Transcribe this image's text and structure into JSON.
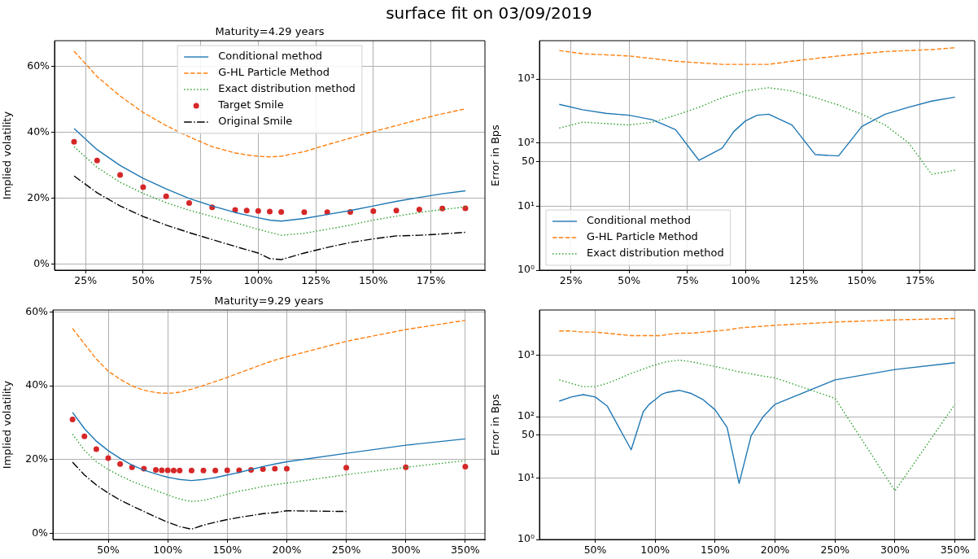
{
  "chart_data": [
    {
      "type": "line",
      "title": "surface fit on 03/09/2019",
      "subtitle": "Maturity=4.29 years",
      "ylabel": "Implied volatility",
      "grid": true,
      "legend": "top",
      "marker": "none",
      "x": [
        20,
        30,
        40,
        50,
        60,
        70,
        80,
        90,
        95,
        100,
        105,
        110,
        120,
        130,
        140,
        150,
        160,
        170,
        180,
        190
      ],
      "xlim": [
        11.5,
        198.5
      ],
      "xticks": [
        {
          "value": 25,
          "label": "25%"
        },
        {
          "value": 50,
          "label": "50%"
        },
        {
          "value": 75,
          "label": "75%"
        },
        {
          "value": 100,
          "label": "100%"
        },
        {
          "value": 125,
          "label": "125%"
        },
        {
          "value": 150,
          "label": "150%"
        },
        {
          "value": 175,
          "label": "175%"
        }
      ],
      "ylim": [
        -1.8,
        67.9
      ],
      "yticks": [
        {
          "value": 0,
          "label": "0%"
        },
        {
          "value": 20,
          "label": "20%"
        },
        {
          "value": 40,
          "label": "40%"
        },
        {
          "value": 60,
          "label": "60%"
        }
      ],
      "series": [
        {
          "name": "Conditional method",
          "color": "#1f77b4",
          "line_style": "solid",
          "values": [
            41.2,
            34.8,
            30.0,
            26.1,
            22.9,
            20.0,
            17.7,
            15.7,
            14.9,
            14.1,
            13.4,
            13.1,
            13.9,
            15.1,
            16.3,
            17.7,
            19.1,
            20.3,
            21.4,
            22.3
          ]
        },
        {
          "name": "G-HL Particle Method",
          "color": "#ff7f0e",
          "line_style": "dashed",
          "values": [
            64.7,
            57.0,
            51.1,
            46.1,
            42.1,
            38.7,
            35.7,
            33.8,
            33.2,
            32.8,
            32.6,
            32.8,
            34.2,
            36.3,
            38.3,
            40.3,
            42.1,
            44.0,
            45.7,
            47.2
          ]
        },
        {
          "name": "Exact distribution method",
          "color": "#2ca02c",
          "line_style": "dotted",
          "values": [
            35.7,
            29.4,
            24.9,
            21.5,
            18.7,
            16.4,
            14.5,
            12.6,
            11.6,
            10.6,
            9.7,
            8.8,
            9.4,
            10.6,
            11.9,
            13.4,
            14.6,
            15.7,
            16.6,
            17.4
          ]
        },
        {
          "name": "Target Smile",
          "type": "scatter",
          "marker": "circle",
          "color": "#d62728",
          "values": [
            37.2,
            31.5,
            27.1,
            23.4,
            20.6,
            18.6,
            17.3,
            16.5,
            16.3,
            16.2,
            16.0,
            15.9,
            15.8,
            15.8,
            15.9,
            16.1,
            16.3,
            16.6,
            16.9,
            17.0
          ]
        },
        {
          "name": "Original Smile",
          "color": "#000000",
          "line_style": "dashdot",
          "values": [
            26.8,
            21.7,
            17.7,
            14.5,
            11.9,
            9.6,
            7.5,
            5.4,
            4.4,
            3.4,
            1.7,
            1.4,
            3.4,
            5.1,
            6.6,
            7.7,
            8.6,
            8.8,
            9.2,
            9.7
          ]
        }
      ]
    },
    {
      "type": "line",
      "ylabel": "Error in Bps",
      "grid": true,
      "legend": "bottom left",
      "marker": "none",
      "log": "y",
      "x": [
        20,
        30,
        40,
        50,
        60,
        70,
        80,
        90,
        95,
        100,
        105,
        110,
        120,
        130,
        140,
        150,
        160,
        170,
        180,
        190
      ],
      "xlim": [
        11.5,
        198.5
      ],
      "xticks": [
        {
          "value": 25,
          "label": "25%"
        },
        {
          "value": 50,
          "label": "50%"
        },
        {
          "value": 75,
          "label": "75%"
        },
        {
          "value": 100,
          "label": "100%"
        },
        {
          "value": 125,
          "label": "125%"
        },
        {
          "value": 150,
          "label": "150%"
        },
        {
          "value": 175,
          "label": "175%"
        }
      ],
      "ylim": [
        1,
        4000
      ],
      "yticks": [
        {
          "value": 1,
          "label": "10⁰"
        },
        {
          "value": 10,
          "label": "10¹"
        },
        50,
        {
          "value": 100,
          "label": "10²"
        },
        {
          "value": 1000,
          "label": "10³"
        }
      ],
      "series": [
        {
          "name": "Conditional method",
          "color": "#1f77b4",
          "line_style": "solid",
          "values": [
            400,
            330,
            290,
            270,
            230,
            160,
            53,
            82,
            150,
            220,
            270,
            280,
            190,
            65,
            62,
            180,
            280,
            360,
            450,
            520
          ]
        },
        {
          "name": "G-HL Particle Method",
          "color": "#ff7f0e",
          "line_style": "dashed",
          "values": [
            2800,
            2500,
            2400,
            2300,
            2100,
            1900,
            1800,
            1700,
            1700,
            1700,
            1700,
            1700,
            1900,
            2100,
            2300,
            2500,
            2700,
            2800,
            2900,
            3100
          ]
        },
        {
          "name": "Exact distribution method",
          "color": "#2ca02c",
          "line_style": "dotted",
          "values": [
            170,
            210,
            200,
            190,
            210,
            270,
            360,
            510,
            580,
            650,
            690,
            730,
            650,
            510,
            390,
            280,
            190,
            100,
            32,
            37
          ]
        }
      ]
    },
    {
      "type": "line",
      "title": "Maturity=9.29 years",
      "ylabel": "Implied volatility",
      "grid": true,
      "marker": "none",
      "x": [
        20,
        30,
        40,
        50,
        60,
        70,
        80,
        90,
        95,
        100,
        105,
        110,
        120,
        130,
        140,
        150,
        160,
        170,
        180,
        190,
        200,
        250,
        300,
        350
      ],
      "xlim": [
        3.5,
        366.5
      ],
      "xticks": [
        {
          "value": 50,
          "label": "50%"
        },
        {
          "value": 100,
          "label": "100%"
        },
        {
          "value": 150,
          "label": "150%"
        },
        {
          "value": 200,
          "label": "200%"
        },
        {
          "value": 250,
          "label": "250%"
        },
        {
          "value": 300,
          "label": "300%"
        },
        {
          "value": 350,
          "label": "350%"
        }
      ],
      "ylim": [
        -1.7,
        60.6
      ],
      "yticks": [
        {
          "value": 0,
          "label": "0%"
        },
        {
          "value": 20,
          "label": "20%"
        },
        {
          "value": 40,
          "label": "40%"
        },
        {
          "value": 60,
          "label": "60%"
        }
      ],
      "series": [
        {
          "color": "#1f77b4",
          "line_style": "solid",
          "values": [
            32.8,
            28.4,
            25.0,
            22.4,
            20.3,
            18.5,
            17.1,
            16.1,
            15.6,
            15.2,
            14.9,
            14.6,
            14.3,
            14.6,
            15.1,
            15.8,
            16.5,
            17.3,
            18.1,
            18.8,
            19.4,
            21.7,
            23.9,
            25.6
          ]
        },
        {
          "color": "#ff7f0e",
          "line_style": "dashed",
          "values": [
            55.6,
            51.4,
            47.3,
            44.0,
            41.8,
            40.0,
            38.8,
            38.2,
            38.0,
            38.0,
            38.1,
            38.3,
            39.1,
            40.1,
            41.2,
            42.3,
            43.5,
            44.7,
            45.9,
            47.0,
            47.9,
            52.1,
            55.3,
            57.8
          ]
        },
        {
          "color": "#2ca02c",
          "line_style": "dotted",
          "values": [
            26.9,
            22.5,
            19.4,
            17.3,
            15.6,
            14.1,
            12.8,
            11.6,
            11.0,
            10.4,
            9.8,
            9.3,
            8.6,
            8.9,
            9.7,
            10.6,
            11.4,
            12.0,
            12.7,
            13.2,
            13.6,
            15.9,
            17.9,
            19.7
          ]
        },
        {
          "type": "scatter",
          "marker": "circle",
          "color": "#d62728",
          "values": [
            30.9,
            26.3,
            22.8,
            20.4,
            18.8,
            17.9,
            17.5,
            17.2,
            17.1,
            17.1,
            17.0,
            17.0,
            17.0,
            17.0,
            17.0,
            17.1,
            17.1,
            17.2,
            17.4,
            17.5,
            17.5,
            17.8,
            17.9,
            18.1
          ]
        },
        {
          "color": "#000000",
          "line_style": "dashdot",
          "values": [
            19.3,
            15.8,
            13.1,
            10.9,
            9.0,
            7.4,
            5.9,
            4.4,
            3.7,
            3.0,
            2.4,
            1.8,
            1.1,
            2.2,
            3.0,
            3.7,
            4.3,
            4.8,
            5.3,
            5.6,
            6.1,
            5.9,
            null,
            null
          ]
        }
      ]
    },
    {
      "type": "line",
      "ylabel": "Error in Bps",
      "grid": true,
      "marker": "none",
      "log": "y",
      "x": [
        20,
        30,
        40,
        50,
        60,
        70,
        80,
        90,
        95,
        100,
        105,
        110,
        120,
        130,
        140,
        150,
        160,
        170,
        180,
        190,
        200,
        250,
        300,
        350
      ],
      "xlim": [
        3.5,
        366.5
      ],
      "xticks": [
        {
          "value": 50,
          "label": "50%"
        },
        {
          "value": 100,
          "label": "100%"
        },
        {
          "value": 150,
          "label": "150%"
        },
        {
          "value": 200,
          "label": "200%"
        },
        {
          "value": 250,
          "label": "250%"
        },
        {
          "value": 300,
          "label": "300%"
        },
        {
          "value": 350,
          "label": "350%"
        }
      ],
      "ylim": [
        1,
        5500
      ],
      "yticks": [
        {
          "value": 1,
          "label": "10⁰"
        },
        {
          "value": 10,
          "label": "10¹"
        },
        50,
        {
          "value": 100,
          "label": "10²"
        },
        {
          "value": 1000,
          "label": "10³"
        }
      ],
      "series": [
        {
          "color": "#1f77b4",
          "line_style": "solid",
          "values": [
            180,
            210,
            230,
            210,
            150,
            66,
            29,
            120,
            160,
            190,
            230,
            250,
            270,
            240,
            190,
            130,
            67,
            8.2,
            49,
            100,
            160,
            400,
            590,
            760
          ]
        },
        {
          "color": "#ff7f0e",
          "line_style": "dashed",
          "values": [
            2500,
            2500,
            2400,
            2400,
            2300,
            2200,
            2100,
            2100,
            2100,
            2100,
            2100,
            2200,
            2300,
            2300,
            2400,
            2500,
            2600,
            2800,
            2900,
            3000,
            3100,
            3500,
            3800,
            4000
          ]
        },
        {
          "color": "#2ca02c",
          "line_style": "dotted",
          "values": [
            400,
            350,
            310,
            310,
            350,
            420,
            510,
            600,
            650,
            700,
            750,
            790,
            840,
            790,
            720,
            660,
            600,
            540,
            500,
            460,
            430,
            200,
            6.2,
            160
          ]
        }
      ]
    }
  ]
}
